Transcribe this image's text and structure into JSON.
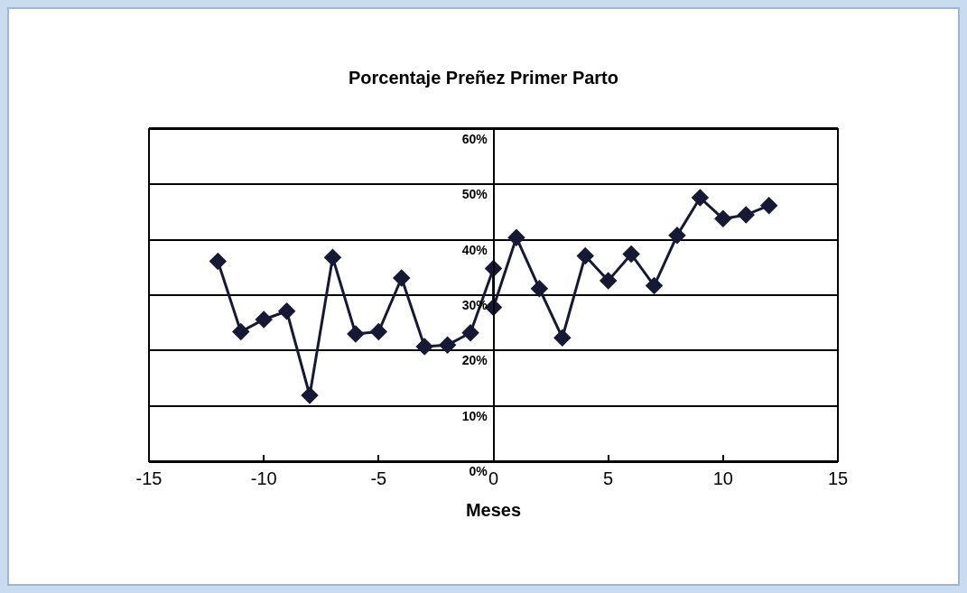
{
  "chart_data": {
    "type": "line",
    "title": "Porcentaje Preñez Primer Parto",
    "xlabel": "Meses",
    "series": [
      {
        "color": "#151933",
        "x": [
          -12,
          -11,
          -10,
          -9,
          -8,
          -7,
          -6,
          -5,
          -4,
          -3,
          -2,
          -1,
          0,
          0,
          1,
          2,
          3,
          4,
          5,
          6,
          7,
          8,
          9,
          10,
          11,
          12
        ],
        "values": [
          36.1,
          23.4,
          25.6,
          27.1,
          11.9,
          36.8,
          23.0,
          23.4,
          33.1,
          20.7,
          21.0,
          23.2,
          34.8,
          27.8,
          40.4,
          31.2,
          22.3,
          37.1,
          32.6,
          37.4,
          31.7,
          40.8,
          47.6,
          43.8,
          44.5,
          46.2
        ]
      }
    ],
    "xlim": [
      -15,
      15
    ],
    "xticks": [
      -15,
      -10,
      -5,
      0,
      5,
      10,
      15
    ],
    "ylim": [
      0,
      60
    ],
    "yticks": [
      {
        "value": 0,
        "label": "0%"
      },
      {
        "value": 10,
        "label": "10%"
      },
      {
        "value": 20,
        "label": "20%"
      },
      {
        "value": 30,
        "label": "30%"
      },
      {
        "value": 40,
        "label": "40%"
      },
      {
        "value": 50,
        "label": "50%"
      },
      {
        "value": 60,
        "label": "60%"
      }
    ],
    "grid": "y",
    "marker": "diamond",
    "line_style": "solid"
  }
}
